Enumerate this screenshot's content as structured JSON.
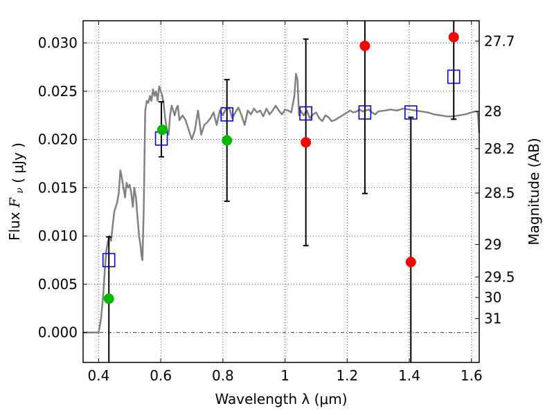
{
  "chart_data": {
    "type": "scatter",
    "xlabel": "Wavelength  λ (μm)",
    "ylabel_text": "Flux",
    "ylabel_var": "F",
    "ylabel_sub": "ν",
    "ylabel_unit": "( μJy )",
    "y2label": "Magnitude (AB)",
    "xlim": [
      0.35,
      1.625
    ],
    "ylim": [
      -0.0031,
      0.0323
    ],
    "xticks": [
      0.4,
      0.6,
      0.8,
      1.0,
      1.2,
      1.4,
      1.6
    ],
    "xtick_labels": [
      "0.4",
      "0.6",
      "0.8",
      "1",
      "1.2",
      "1.4",
      "1.6"
    ],
    "yticks": [
      0.0,
      0.005,
      0.01,
      0.015,
      0.02,
      0.025,
      0.03
    ],
    "ytick_labels": [
      "0.000",
      "0.005",
      "0.010",
      "0.015",
      "0.020",
      "0.025",
      "0.030"
    ],
    "y2ticks": [
      {
        "label": "27.7",
        "mag": 27.7
      },
      {
        "label": "28",
        "mag": 28.0
      },
      {
        "label": "28.2",
        "mag": 28.2
      },
      {
        "label": "28.5",
        "mag": 28.5
      },
      {
        "label": "29",
        "mag": 29.0
      },
      {
        "label": "29.5",
        "mag": 29.5
      },
      {
        "label": "30",
        "mag": 30.0
      },
      {
        "label": "31",
        "mag": 31.0
      }
    ],
    "grid": true,
    "colors": {
      "model": "#808080",
      "green": "#00bb00",
      "red": "#ff0000",
      "box": "#0000ee",
      "err": "#000000"
    },
    "model_spectrum": {
      "x": [
        0.35,
        0.4,
        0.408,
        0.415,
        0.42,
        0.425,
        0.43,
        0.435,
        0.44,
        0.445,
        0.45,
        0.455,
        0.46,
        0.465,
        0.47,
        0.475,
        0.48,
        0.485,
        0.49,
        0.495,
        0.5,
        0.505,
        0.51,
        0.515,
        0.52,
        0.525,
        0.53,
        0.535,
        0.538,
        0.541,
        0.545,
        0.55,
        0.555,
        0.56,
        0.565,
        0.57,
        0.575,
        0.58,
        0.585,
        0.59,
        0.595,
        0.6,
        0.605,
        0.61,
        0.615,
        0.62,
        0.625,
        0.63,
        0.635,
        0.64,
        0.645,
        0.65,
        0.655,
        0.66,
        0.67,
        0.68,
        0.69,
        0.7,
        0.71,
        0.72,
        0.73,
        0.74,
        0.75,
        0.76,
        0.77,
        0.78,
        0.79,
        0.8,
        0.81,
        0.82,
        0.83,
        0.84,
        0.85,
        0.86,
        0.87,
        0.88,
        0.89,
        0.9,
        0.91,
        0.92,
        0.93,
        0.94,
        0.95,
        0.96,
        0.97,
        0.98,
        0.99,
        1.0,
        1.01,
        1.02,
        1.03,
        1.035,
        1.04,
        1.045,
        1.05,
        1.06,
        1.07,
        1.08,
        1.09,
        1.1,
        1.11,
        1.12,
        1.13,
        1.14,
        1.15,
        1.16,
        1.17,
        1.18,
        1.19,
        1.2,
        1.21,
        1.22,
        1.23,
        1.24,
        1.25,
        1.26,
        1.27,
        1.28,
        1.29,
        1.3,
        1.32,
        1.34,
        1.36,
        1.38,
        1.4,
        1.42,
        1.44,
        1.46,
        1.48,
        1.5,
        1.52,
        1.54,
        1.56,
        1.58,
        1.6,
        1.61,
        1.62,
        1.625
      ],
      "y": [
        0.0,
        0.0,
        0.0015,
        0.004,
        0.0065,
        0.0085,
        0.0095,
        0.01,
        0.0095,
        0.011,
        0.0125,
        0.013,
        0.0135,
        0.0145,
        0.0168,
        0.016,
        0.015,
        0.014,
        0.0155,
        0.015,
        0.0153,
        0.0145,
        0.013,
        0.015,
        0.014,
        0.012,
        0.01,
        0.009,
        0.008,
        0.0075,
        0.0125,
        0.023,
        0.024,
        0.0238,
        0.0245,
        0.024,
        0.0252,
        0.0245,
        0.025,
        0.024,
        0.0255,
        0.025,
        0.0245,
        0.0235,
        0.022,
        0.021,
        0.0205,
        0.0225,
        0.0235,
        0.023,
        0.0225,
        0.0232,
        0.0235,
        0.022,
        0.0225,
        0.022,
        0.021,
        0.02,
        0.021,
        0.023,
        0.0205,
        0.0215,
        0.0218,
        0.0222,
        0.0228,
        0.0215,
        0.023,
        0.0225,
        0.0232,
        0.0233,
        0.0222,
        0.0228,
        0.0233,
        0.0225,
        0.0215,
        0.023,
        0.0226,
        0.0232,
        0.0228,
        0.023,
        0.0224,
        0.0232,
        0.0226,
        0.023,
        0.0235,
        0.023,
        0.0226,
        0.0231,
        0.023,
        0.0228,
        0.0245,
        0.0268,
        0.0262,
        0.0225,
        0.023,
        0.0225,
        0.023,
        0.0222,
        0.0226,
        0.0228,
        0.0222,
        0.0219,
        0.0225,
        0.0223,
        0.0219,
        0.022,
        0.0222,
        0.0224,
        0.0226,
        0.0228,
        0.023,
        0.0228,
        0.0229,
        0.0231,
        0.0229,
        0.023,
        0.0231,
        0.0228,
        0.0226,
        0.0229,
        0.023,
        0.0231,
        0.023,
        0.0232,
        0.0231,
        0.023,
        0.0229,
        0.0228,
        0.0226,
        0.0225,
        0.0224,
        0.0224,
        0.0225,
        0.0226,
        0.0228,
        0.0229,
        0.0229,
        0.0207
      ]
    },
    "green_points": {
      "x": [
        0.433,
        0.605,
        0.813
      ],
      "y": [
        0.0035,
        0.021,
        0.0199
      ]
    },
    "red_points": {
      "x": [
        1.067,
        1.257,
        1.405,
        1.543
      ],
      "y": [
        0.0197,
        0.0297,
        0.0073,
        0.0306
      ]
    },
    "box_points": {
      "x": [
        0.433,
        0.602,
        0.813,
        1.067,
        1.257,
        1.405,
        1.543
      ],
      "y": [
        0.0075,
        0.0201,
        0.0226,
        0.0227,
        0.0228,
        0.0228,
        0.0265
      ]
    },
    "error_bars": {
      "x": [
        0.433,
        0.602,
        0.813,
        1.067,
        1.257,
        1.405,
        1.543
      ],
      "lo": [
        -0.0031,
        0.0182,
        0.0136,
        0.009,
        0.0144,
        -0.0031,
        0.0221
      ],
      "hi": [
        0.0099,
        0.0239,
        0.0262,
        0.0304,
        0.0323,
        0.0223,
        0.0323
      ],
      "cap_lo": [
        false,
        true,
        true,
        true,
        true,
        false,
        true
      ],
      "cap_hi": [
        true,
        true,
        true,
        true,
        false,
        true,
        false
      ]
    }
  }
}
